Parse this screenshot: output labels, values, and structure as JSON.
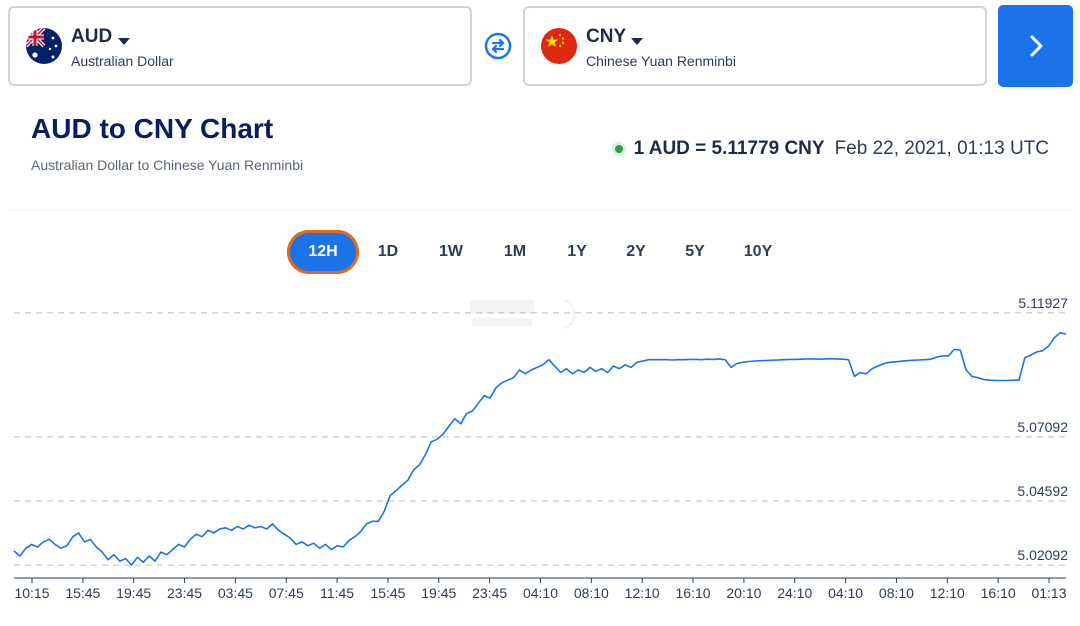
{
  "from": {
    "code": "AUD",
    "name": "Australian Dollar",
    "flag": "australia-flag-icon"
  },
  "to": {
    "code": "CNY",
    "name": "Chinese Yuan Renminbi",
    "flag": "china-flag-icon"
  },
  "header": {
    "title": "AUD to CNY Chart",
    "subtitle": "Australian Dollar to Chinese Yuan Renminbi",
    "rate": "1 AUD = 5.11779 CNY",
    "timestamp": "Feb 22, 2021, 01:13 UTC"
  },
  "ranges": [
    "12H",
    "1D",
    "1W",
    "1M",
    "1Y",
    "2Y",
    "5Y",
    "10Y"
  ],
  "active_range": "12H",
  "colors": {
    "accent": "#1a73e8",
    "line": "#1a73e8",
    "active_ring": "#e26a1b",
    "live": "#2ea043"
  },
  "chart_data": {
    "type": "line",
    "title": "",
    "ylim": [
      5.01592,
      5.12427
    ],
    "y_ticks": [
      5.11927,
      5.07092,
      5.04592,
      5.02092
    ],
    "y_tick_labels": [
      "5.11927",
      "5.07092",
      "5.04592",
      "5.02092"
    ],
    "x_tick_labels": [
      "10:15",
      "15:45",
      "19:45",
      "23:45",
      "03:45",
      "07:45",
      "11:45",
      "15:45",
      "19:45",
      "23:45",
      "04:10",
      "08:10",
      "12:10",
      "16:10",
      "20:10",
      "24:10",
      "04:10",
      "08:10",
      "12:10",
      "16:10",
      "01:13"
    ],
    "series": [
      {
        "values": [
          5.0265,
          5.0245,
          5.0275,
          5.029,
          5.028,
          5.03,
          5.031,
          5.029,
          5.0275,
          5.0285,
          5.032,
          5.0335,
          5.03,
          5.031,
          5.028,
          5.026,
          5.023,
          5.025,
          5.0225,
          5.0235,
          5.021,
          5.024,
          5.022,
          5.0245,
          5.0225,
          5.026,
          5.025,
          5.027,
          5.029,
          5.028,
          5.031,
          5.033,
          5.032,
          5.0345,
          5.0335,
          5.035,
          5.0355,
          5.0345,
          5.036,
          5.035,
          5.0365,
          5.0355,
          5.036,
          5.035,
          5.037,
          5.0345,
          5.033,
          5.0315,
          5.029,
          5.03,
          5.0285,
          5.0295,
          5.0275,
          5.029,
          5.027,
          5.0285,
          5.028,
          5.0305,
          5.032,
          5.034,
          5.037,
          5.038,
          5.038,
          5.042,
          5.048,
          5.05,
          5.052,
          5.054,
          5.058,
          5.06,
          5.064,
          5.069,
          5.07,
          5.072,
          5.075,
          5.078,
          5.076,
          5.08,
          5.081,
          5.084,
          5.087,
          5.086,
          5.09,
          5.092,
          5.093,
          5.094,
          5.097,
          5.0955,
          5.097,
          5.098,
          5.099,
          5.101,
          5.0985,
          5.096,
          5.0975,
          5.0955,
          5.097,
          5.096,
          5.098,
          5.0965,
          5.0975,
          5.096,
          5.0985,
          5.0975,
          5.099,
          5.098,
          5.1,
          5.1005,
          5.101,
          5.101,
          5.101,
          5.101,
          5.1009,
          5.101,
          5.101,
          5.1011,
          5.1011,
          5.101,
          5.1012,
          5.1011,
          5.1013,
          5.101,
          5.098,
          5.0995,
          5.1,
          5.1003,
          5.1005,
          5.1006,
          5.1007,
          5.1008,
          5.1009,
          5.101,
          5.1011,
          5.1011,
          5.1012,
          5.1013,
          5.1013,
          5.1012,
          5.1013,
          5.1014,
          5.1013,
          5.1012,
          5.101,
          5.0945,
          5.096,
          5.0955,
          5.0975,
          5.0985,
          5.0995,
          5.1,
          5.1002,
          5.1004,
          5.1006,
          5.1008,
          5.1009,
          5.101,
          5.1012,
          5.102,
          5.1025,
          5.1025,
          5.105,
          5.1048,
          5.097,
          5.0945,
          5.094,
          5.0933,
          5.093,
          5.0929,
          5.0929,
          5.0929,
          5.093,
          5.093,
          5.1018,
          5.1028,
          5.104,
          5.1045,
          5.1062,
          5.1095,
          5.1115,
          5.111
        ]
      }
    ]
  }
}
